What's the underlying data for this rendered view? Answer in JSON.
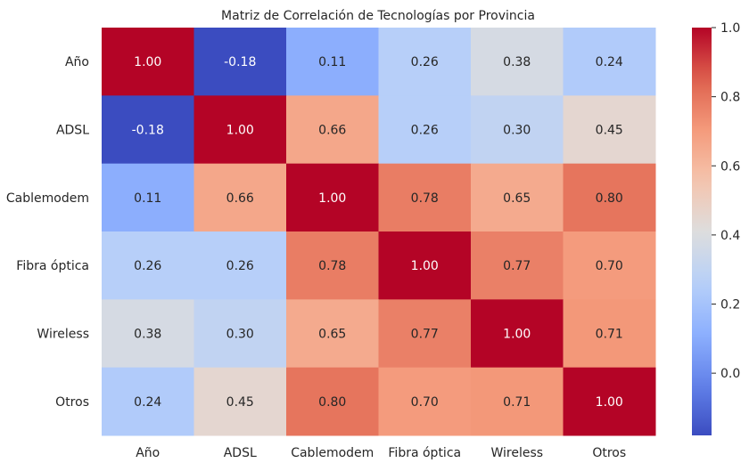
{
  "chart_data": {
    "type": "heatmap",
    "title": "Matriz de Correlación de Tecnologías por Provincia",
    "xlabel": "",
    "ylabel": "",
    "rows": [
      "Año",
      "ADSL",
      "Cablemodem",
      "Fibra óptica",
      "Wireless",
      "Otros"
    ],
    "columns": [
      "Año",
      "ADSL",
      "Cablemodem",
      "Fibra óptica",
      "Wireless",
      "Otros"
    ],
    "values": [
      [
        1.0,
        -0.18,
        0.11,
        0.26,
        0.38,
        0.24
      ],
      [
        -0.18,
        1.0,
        0.66,
        0.26,
        0.3,
        0.45
      ],
      [
        0.11,
        0.66,
        1.0,
        0.78,
        0.65,
        0.8
      ],
      [
        0.26,
        0.26,
        0.78,
        1.0,
        0.77,
        0.7
      ],
      [
        0.38,
        0.3,
        0.65,
        0.77,
        1.0,
        0.71
      ],
      [
        0.24,
        0.45,
        0.8,
        0.7,
        0.71,
        1.0
      ]
    ],
    "value_format": "0.00",
    "colormap": "coolwarm",
    "colorbar": {
      "range": [
        -0.18,
        1.0
      ],
      "ticks": [
        0.0,
        0.2,
        0.4,
        0.6,
        0.8,
        1.0
      ],
      "tick_labels": [
        "0.0",
        "0.2",
        "0.4",
        "0.6",
        "0.8",
        "1.0"
      ],
      "placement": "right"
    },
    "annotations": true,
    "grid": false
  }
}
